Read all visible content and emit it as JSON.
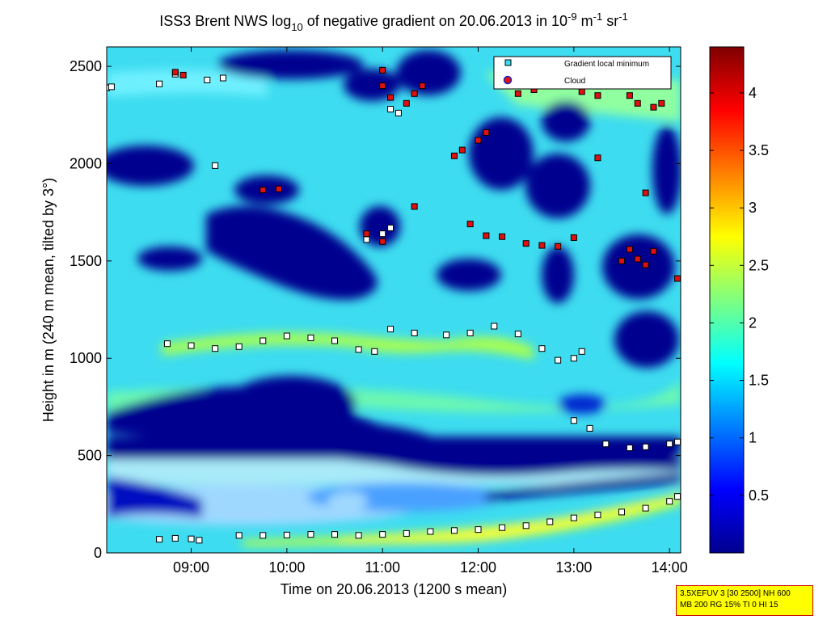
{
  "chart_data": {
    "type": "heatmap",
    "title": "ISS3 Brent NWS log10 of negative gradient on 20.06.2013 in 10-9 m-1 sr-1",
    "title_parts": {
      "main": "ISS3 Brent NWS log",
      "sub10": "10",
      "mid": " of negative gradient on 20.06.2013 in 10",
      "sup_exp": "-9",
      "unit_m": " m",
      "sup_m": "-1",
      "unit_sr": " sr",
      "sup_sr": "-1"
    },
    "xlabel": "Time on 20.06.2013 (1200 s mean)",
    "ylabel": "Height in m (240 m mean, tilted by 3°)",
    "xlim": [
      "08:07",
      "14:07"
    ],
    "ylim": [
      0,
      2600
    ],
    "x_ticks": [
      "09:00",
      "10:00",
      "11:00",
      "12:00",
      "13:00",
      "14:00"
    ],
    "y_ticks": [
      "0",
      "500",
      "1000",
      "1500",
      "2000",
      "2500"
    ],
    "colorbar": {
      "range": [
        0,
        4.4
      ],
      "ticks": [
        "0.5",
        "1",
        "1.5",
        "2",
        "2.5",
        "3",
        "3.5",
        "4"
      ]
    },
    "legend": {
      "placement": "top-right",
      "entries": [
        "Gradient local minimum",
        "Cloud"
      ]
    },
    "series": [
      {
        "name": "Gradient local minimum",
        "points": [
          [
            "08:40",
            70
          ],
          [
            "08:50",
            75
          ],
          [
            "09:00",
            72
          ],
          [
            "09:05",
            65
          ],
          [
            "09:30",
            90
          ],
          [
            "09:45",
            90
          ],
          [
            "10:00",
            92
          ],
          [
            "10:15",
            95
          ],
          [
            "10:30",
            95
          ],
          [
            "10:45",
            90
          ],
          [
            "11:00",
            95
          ],
          [
            "11:15",
            100
          ],
          [
            "11:30",
            110
          ],
          [
            "11:45",
            115
          ],
          [
            "12:00",
            120
          ],
          [
            "12:15",
            130
          ],
          [
            "12:30",
            140
          ],
          [
            "12:45",
            160
          ],
          [
            "13:00",
            180
          ],
          [
            "13:15",
            195
          ],
          [
            "13:30",
            210
          ],
          [
            "13:45",
            230
          ],
          [
            "14:00",
            265
          ],
          [
            "14:05",
            290
          ],
          [
            "08:45",
            1075
          ],
          [
            "09:00",
            1065
          ],
          [
            "09:15",
            1050
          ],
          [
            "09:30",
            1060
          ],
          [
            "09:45",
            1090
          ],
          [
            "10:00",
            1115
          ],
          [
            "10:15",
            1105
          ],
          [
            "10:30",
            1090
          ],
          [
            "10:45",
            1045
          ],
          [
            "10:55",
            1035
          ],
          [
            "11:05",
            1150
          ],
          [
            "11:20",
            1130
          ],
          [
            "11:40",
            1120
          ],
          [
            "11:55",
            1130
          ],
          [
            "12:10",
            1165
          ],
          [
            "12:25",
            1125
          ],
          [
            "12:40",
            1050
          ],
          [
            "12:50",
            990
          ],
          [
            "13:00",
            1000
          ],
          [
            "13:05",
            1035
          ],
          [
            "13:00",
            680
          ],
          [
            "13:10",
            640
          ],
          [
            "13:20",
            560
          ],
          [
            "13:35",
            540
          ],
          [
            "13:45",
            545
          ],
          [
            "14:00",
            560
          ],
          [
            "14:05",
            570
          ],
          [
            "08:07",
            2390
          ],
          [
            "08:10",
            2395
          ],
          [
            "08:40",
            2410
          ],
          [
            "08:50",
            2460
          ],
          [
            "09:10",
            2430
          ],
          [
            "09:20",
            2440
          ],
          [
            "09:15",
            1990
          ],
          [
            "10:50",
            1610
          ],
          [
            "11:00",
            1640
          ],
          [
            "11:05",
            1670
          ],
          [
            "11:05",
            2280
          ],
          [
            "11:10",
            2260
          ]
        ]
      },
      {
        "name": "Cloud",
        "points": [
          [
            "08:50",
            2470
          ],
          [
            "08:55",
            2455
          ],
          [
            "09:45",
            1865
          ],
          [
            "09:55",
            1870
          ],
          [
            "10:50",
            1640
          ],
          [
            "11:00",
            1600
          ],
          [
            "11:00",
            2480
          ],
          [
            "11:00",
            2400
          ],
          [
            "11:05",
            2340
          ],
          [
            "11:15",
            2310
          ],
          [
            "11:20",
            2360
          ],
          [
            "11:25",
            2400
          ],
          [
            "11:20",
            1780
          ],
          [
            "11:45",
            2040
          ],
          [
            "11:50",
            2070
          ],
          [
            "12:00",
            2120
          ],
          [
            "12:05",
            2160
          ],
          [
            "11:55",
            1690
          ],
          [
            "12:05",
            1630
          ],
          [
            "12:15",
            1625
          ],
          [
            "12:30",
            1590
          ],
          [
            "12:40",
            1580
          ],
          [
            "12:50",
            1575
          ],
          [
            "13:00",
            1620
          ],
          [
            "12:25",
            2360
          ],
          [
            "12:35",
            2380
          ],
          [
            "13:05",
            2370
          ],
          [
            "13:15",
            2350
          ],
          [
            "13:15",
            2030
          ],
          [
            "13:35",
            2350
          ],
          [
            "13:40",
            2310
          ],
          [
            "13:50",
            2290
          ],
          [
            "13:55",
            2310
          ],
          [
            "13:45",
            1850
          ],
          [
            "13:35",
            1560
          ],
          [
            "13:40",
            1510
          ],
          [
            "13:45",
            1480
          ],
          [
            "13:50",
            1550
          ],
          [
            "14:05",
            1410
          ],
          [
            "13:30",
            1500
          ]
        ]
      }
    ]
  },
  "info_box": {
    "line1": "3.5XEFUV 3 [30 2500] NH 600",
    "line2": "MB 200 RG 15% TI 0 HI 15"
  }
}
